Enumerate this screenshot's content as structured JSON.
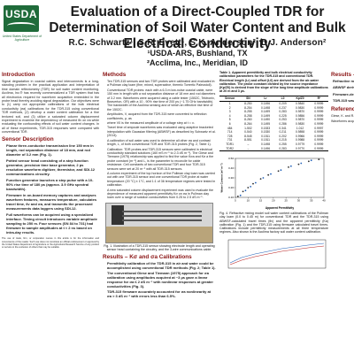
{
  "header": {
    "logo_text": "USDA",
    "logo_caption": "United States Department of Agriculture",
    "title": "Evaluation of a Direct-Coupled TDR for Determination of Soil Water Content and Bulk Electrical Conductivity",
    "authors": "R.C. Schwartz¹, S.R. Evett¹, S.K. Anderson², D.J. Anderson²",
    "affiliation1": "¹USDA-ARS, Bushland, TX",
    "affiliation2": "²Acclima, Inc., Meridian, ID"
  },
  "introduction": {
    "heading": "Introduction",
    "text": "Signal degradation in coaxial cables and interconnects is a long-standing problem in the practical application and interpretation of time domain reflectometry (TDR) for soil water content monitoring. Acclima, Inc.® has recently commercialized a TDR system that has all electronics required for waveform acquisition embedded in the probe head thereby avoiding signal degradation. Our objectives were to (1) carry out appropriate calibrations of the bulk electrical conductivity (σa) calibrations for the TDR-315 using conventional TDR methods, (2) develop a water content calibration for a fine textured soil, and (3) utilize a saturated column displacement experiment to examine the dependency of measured θv on σa while evaluating the confounding effects of soil water content changes. In all of these experiments, TDR-315 responses were compared with conventional TDR."
  },
  "sensor_description": {
    "heading": "Sensor Description",
    "items": [
      "Planar three-conductor transmission line 150 mm in length, rod separation distance of 18 mm, and rod diameter of 3.2 mm (Fig. 1).",
      "Potted sensor head consisting of a step function generator, precision time base generator, 2 ps resolution waveform digitizer, thermistor, and SDI-12 communications circuitry.",
      "Function generator launches a step pulse with a 10-90% rise time of 180 ps (approx. 3.9 GHz spectral bandwidth).",
      "Firmware in on-board memory captures and analyses waveform features, measures temperature, calculates travel time, θv and σa, and transmits the processed measurements data loggers using SDI-12.",
      "Full waveforms can be acquired using a specialized interface. Timing circuit introduces variable amplitude sampling to 250 m. Four sensors (SN 84 to 731) had firmware to sample amplitudes at t ≈ 2 ns based on intra-day results."
    ],
    "footnote": "The use of trade, firm, or corporation names in this article is for the information and convenience of the reader. Such use does not constitute an official endorsement or approval by the United States Department of Agriculture or the Agricultural Research Service of any product or service to the exclusion of others that may be suitable."
  },
  "methods": {
    "heading": "Methods",
    "items": [
      "Ten TDR-315 sensors and two TDR probes were calibrated and evaluated in a Pullman clay loam (fine, mixed, superactive, thermic Torrertic Paleustoll).",
      "Conventional TDR probes: each with a 6.3 m low-noise coaxial cable, were 150 mm in length with a rod separation distance of 18 mm and rod diameters of 3.2 mm. Waveforms were acquired using a cable tester (1502C, Tektronix, Beaverton, OR) with a 10 - 90% rise time of 200 ps (~1.75 GHz bandwidth). The bandwidth of the Acclima sensing and of which an effective rise time of the 1502C.",
      "Amplitudes, V, acquired from the TDR-315 were converted to reflection coefficients, ρ, as",
      "where V0 is the measured amplitude of a voltage step at t = ∞.",
      "Travel time of ampoule waveforms was evaluated using adaptive bracketed interpolation with Gaussian filtering (ABWSF) as described by Schwartz et al. (2014).",
      "A calibration of soil water was used to determine all other σa and contrast length, L, of both conventional TDR and TDR-315 probes (Fig. 2, Table 1).",
      "Calibration: TDR probes and TDR-315 sensors were calibrated in electrical conductivity standard solutions (160 mS m⁻¹ to 2.3 dS m⁻¹). The Giese and Tiemann (1975) relationship was applied to find the value Kσa and Kσ a the probe constant (m⁻¹) and L, is the parameter to reconcile for cable resistance. Cell constants of two conventional TDR and four TDR-315 sensors were set at 20 m⁻¹ with all TDR-315 sensors.",
      "A column experiment of the top horizon of the Pullman clay loam was carried out with one TDR-315 sensor and one conventional TDR probe at water temperature (20 °C) ± 1°C, and 1:1 of 36 temperature regimes were tested in calibration.",
      "A new saturated column displacement experiment was used to evaluate the dependence of measured apparent permittivity Kσ on σa in Pullman clay loam over a range of solution conductivities from 0.25 to 2.5 dS m⁻¹."
    ]
  },
  "figure1": {
    "caption": "Fig. 1. Illustration of a TDR-315 sensor showing electrode length and operating sensor head containing the circuitry, and the 3-wire communications cable."
  },
  "results_ka_sigma": {
    "heading": "Results – Kσ and σa Calibrations",
    "items": [
      "Permittivity calibration of the TDR-315 in air and water could be accomplished using conventional TDR methods (Fig. 2; Table 1).",
      "The conventional Giese and Tiemann (1975) approach for σa calibration using amplitudes acquired at ~3 µs gave a linear response for σa ≤ 2 dS m⁻¹ with nonlinear responses at greater conductivities (Fig. 3).",
      "TDR-315 firmware accurately accounted for σa nonlinearity at σa > 3 dS m⁻¹ with errors less than 6.5%."
    ]
  },
  "table1": {
    "caption": "Table 1. Apparent permittivity and bulk electrical conductivity calibration parameters for the TDR-315 and conventional TDR. Electrical length (Lr) and offset (L0) are derived from the air-water calibration. The probe constant divided by the source impedance (Kp/Z0) is derived from the slope of the long time amplitude calibrations at 20 m and 3 µs.",
    "headers": [
      "Sensor",
      "SN",
      "Lr",
      "L0",
      "Kp/Z0",
      "R²"
    ],
    "rows": [
      [
        "1",
        "8-250",
        "0.1496",
        "0.209",
        "0.9840",
        "0.9999"
      ],
      [
        "2",
        "8-254",
        "0.1498",
        "0.237",
        "0.9830",
        "0.9999"
      ],
      [
        "3",
        "8-255",
        "0.1499",
        "0.283",
        "0.9870",
        "0.9999"
      ],
      [
        "4",
        "8-258",
        "0.1499",
        "0.225",
        "0.9856",
        "0.9999"
      ],
      [
        "5",
        "8-260",
        "0.1490",
        "0.253",
        "0.9870",
        "0.9999"
      ],
      [
        "6",
        "8-264",
        "0.1495",
        "0.286",
        "0.9830",
        "0.9999"
      ],
      [
        "484",
        "1-502",
        "0.1533",
        "0.341",
        "1.012",
        "0.9997"
      ],
      [
        "714",
        "0-540",
        "0.1530",
        "0.211",
        "0.9898",
        "0.9999"
      ],
      [
        "728",
        "8-545",
        "0.1511",
        "0.202",
        "0.9966",
        "0.9999"
      ],
      [
        "731",
        "8-551",
        "0.1511",
        "0.215",
        "0.9988",
        "0.9999"
      ],
      [
        "TDR1",
        "–",
        "0.1498",
        "0.255",
        "0.9779",
        "0.9999"
      ],
      [
        "TDR2",
        "–",
        "0.1496",
        "0.283",
        "0.9770",
        "0.9999"
      ]
    ]
  },
  "chart_data": {
    "type": "scatter",
    "title": "",
    "legend": [],
    "xlabel": "Apparent Permittivity",
    "ylabel": "Water Content (m³ m⁻³)",
    "x_ticks": [
      "5",
      "10",
      "15",
      "20",
      "25",
      "30",
      "35",
      "40"
    ],
    "y_ticks": [
      "0.10",
      "0.20",
      "0.30",
      "0.40",
      "0.50"
    ],
    "xlim": [
      5,
      40
    ],
    "ylim": [
      0.1,
      0.5
    ],
    "series": [
      {
        "name": "",
        "color": "#2b2b2b",
        "points": [
          [
            6,
            0.11
          ],
          [
            8,
            0.16
          ],
          [
            10,
            0.2
          ],
          [
            12,
            0.24
          ],
          [
            15,
            0.29
          ],
          [
            18,
            0.33
          ],
          [
            22,
            0.37
          ],
          [
            26,
            0.41
          ],
          [
            30,
            0.44
          ],
          [
            34,
            0.47
          ],
          [
            38,
            0.49
          ]
        ]
      },
      {
        "name": "",
        "color": "#2060b8",
        "points": [
          [
            7,
            0.12
          ],
          [
            9,
            0.17
          ],
          [
            11,
            0.21
          ],
          [
            13,
            0.25
          ],
          [
            16,
            0.3
          ],
          [
            19,
            0.34
          ],
          [
            23,
            0.38
          ],
          [
            27,
            0.42
          ],
          [
            31,
            0.45
          ],
          [
            35,
            0.48
          ]
        ]
      }
    ]
  },
  "figure4": {
    "caption": "Fig. 4. Refractive mixing model soil water content calibrations of the Pullman clay loam (0.0 to 0.45 m) for conventional TDR and the TDR-315 using ABWSF-calculated travel times (θv) and the apparent permittivity (Ka) calibration (Fig. 1) and the TDR-315 using firmware calculated travel times. Calibrations include permittivity measurements at all three temperature regimes. Also shown is the Acclima factory soil water content calibration."
  },
  "results_right": {
    "heading": "Results – Evalua",
    "items": [
      "Refractive mixing calibrations for the Pullman TDR-315 firmware ABWSF-calculated ti nearly indistinguisha TDR calibrations (Fig",
      "ABWSF derived Ka insensitive to σa up to conductivity of 7.2 estimated with firm TDR increased from 3",
      "Firmware-derived Ka exhibited a slight see likely due to the m evaluated (Fig. 5).",
      "TDR-315 waveforms proportion of high fr as compared to c inferred by a greater at the rod terminatio"
    ],
    "references_heading": "References",
    "references_text": "Giese, K. and R. Tiemann. 1975. Determination of complex permittivity... Schwartz, R.C., S.R. Evett, and others... Topp et al. 1980...",
    "ack_text": "Waveforms acquired with the TDR-315 and ABWSF available upon request from robert.schwartz@ars.usda.gov"
  }
}
